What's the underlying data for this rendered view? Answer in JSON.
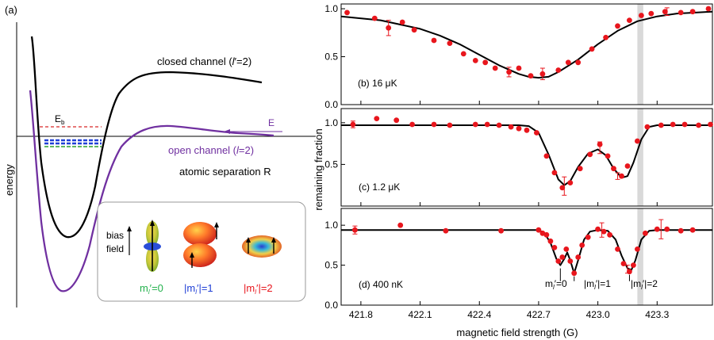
{
  "panel_a": {
    "label": "(a)",
    "ylabel": "energy",
    "closed_channel": "closed channel (",
    "closed_l": "l",
    "closed_rest": "′=2)",
    "open_channel": "open channel (",
    "open_l": "l",
    "open_rest": "=2)",
    "eb_E": "E",
    "eb_sub": "b",
    "energy_E": "E",
    "separation": "atomic separation R",
    "inset": {
      "bias": "bias",
      "field": "field",
      "m0_text": "m",
      "m0_sub": "l",
      "m0_rest": "′=0",
      "m1_text": "|m",
      "m1_sub": "l",
      "m1_rest": "′|=1",
      "m2_text": "|m",
      "m2_sub": "l",
      "m2_rest": "′|=2"
    }
  },
  "colors": {
    "closed": "#000000",
    "open": "#7030a0",
    "eb_line": "#d62728",
    "blue_state": "#1f3fd6",
    "green_state": "#2ca02c",
    "data": "#e8161d",
    "m0": "#22b14c",
    "m1": "#1f3fd6",
    "m2": "#e8161d",
    "shade": "#d9d9d9"
  },
  "right_panels": {
    "ylabel": "remaining fraction",
    "xlabel": "magnetic field strength (G)",
    "b_label": "(b) 16 μK",
    "c_label": "(c) 1.2 μK",
    "d_label": "(d) 400 nK",
    "d_m0_text": "m",
    "d_m0_sub": "l",
    "d_m0_rest": "′=0",
    "d_m1_text": "|m",
    "d_m1_sub": "l",
    "d_m1_rest": "′|=1",
    "d_m2_text": "|m",
    "d_m2_sub": "l",
    "d_m2_rest": "′|=2"
  },
  "chart_data": [
    {
      "type": "scatter",
      "title": "(b) 16 μK",
      "xlabel": "magnetic field strength (G)",
      "ylabel": "remaining fraction",
      "xlim": [
        421.7,
        423.58
      ],
      "ylim": [
        0.0,
        1.05
      ],
      "yticks": [
        0.0,
        0.5,
        1.0
      ],
      "ytick_labels": [
        "0.0",
        "0.5",
        "1.0"
      ],
      "shaded_band": [
        423.2,
        423.23
      ],
      "points": [
        [
          421.73,
          0.96
        ],
        [
          421.87,
          0.9
        ],
        [
          421.94,
          0.8
        ],
        [
          422.01,
          0.86
        ],
        [
          422.07,
          0.78
        ],
        [
          422.17,
          0.67
        ],
        [
          422.25,
          0.64
        ],
        [
          422.32,
          0.53
        ],
        [
          422.38,
          0.46
        ],
        [
          422.43,
          0.44
        ],
        [
          422.48,
          0.38
        ],
        [
          422.55,
          0.34
        ],
        [
          422.6,
          0.38
        ],
        [
          422.66,
          0.3
        ],
        [
          422.72,
          0.32
        ],
        [
          422.8,
          0.36
        ],
        [
          422.85,
          0.44
        ],
        [
          422.9,
          0.44
        ],
        [
          422.97,
          0.58
        ],
        [
          423.04,
          0.7
        ],
        [
          423.1,
          0.82
        ],
        [
          423.16,
          0.88
        ],
        [
          423.22,
          0.93
        ],
        [
          423.27,
          0.95
        ],
        [
          423.34,
          0.97
        ],
        [
          423.42,
          0.96
        ],
        [
          423.48,
          0.97
        ],
        [
          423.56,
          1.0
        ]
      ],
      "fit": [
        [
          421.7,
          0.92
        ],
        [
          421.9,
          0.88
        ],
        [
          422.1,
          0.79
        ],
        [
          422.2,
          0.72
        ],
        [
          422.3,
          0.63
        ],
        [
          422.4,
          0.52
        ],
        [
          422.5,
          0.41
        ],
        [
          422.6,
          0.32
        ],
        [
          422.65,
          0.29
        ],
        [
          422.7,
          0.28
        ],
        [
          422.75,
          0.29
        ],
        [
          422.8,
          0.34
        ],
        [
          422.9,
          0.47
        ],
        [
          423.0,
          0.63
        ],
        [
          423.1,
          0.77
        ],
        [
          423.2,
          0.87
        ],
        [
          423.3,
          0.92
        ],
        [
          423.4,
          0.95
        ],
        [
          423.58,
          0.97
        ]
      ],
      "error_bars": [
        [
          421.94,
          0.8,
          0.08
        ],
        [
          422.55,
          0.34,
          0.05
        ],
        [
          422.72,
          0.32,
          0.06
        ],
        [
          423.35,
          0.97,
          0.04
        ]
      ]
    },
    {
      "type": "scatter",
      "title": "(c) 1.2 μK",
      "xlabel": "magnetic field strength (G)",
      "ylabel": "remaining fraction",
      "xlim": [
        421.7,
        423.58
      ],
      "ylim": [
        0.0,
        1.17
      ],
      "yticks": [
        0.5,
        1.0
      ],
      "ytick_labels": [
        "0.5",
        "1.0"
      ],
      "shaded_band": [
        423.2,
        423.23
      ],
      "points": [
        [
          421.76,
          0.98
        ],
        [
          421.88,
          1.05
        ],
        [
          421.98,
          1.03
        ],
        [
          422.06,
          0.98
        ],
        [
          422.17,
          0.98
        ],
        [
          422.25,
          0.97
        ],
        [
          422.38,
          0.98
        ],
        [
          422.44,
          0.98
        ],
        [
          422.5,
          0.97
        ],
        [
          422.56,
          0.95
        ],
        [
          422.6,
          0.93
        ],
        [
          422.64,
          0.91
        ],
        [
          422.69,
          0.88
        ],
        [
          422.74,
          0.6
        ],
        [
          422.78,
          0.4
        ],
        [
          422.82,
          0.22
        ],
        [
          422.86,
          0.28
        ],
        [
          422.91,
          0.45
        ],
        [
          422.96,
          0.62
        ],
        [
          423.01,
          0.74
        ],
        [
          423.05,
          0.6
        ],
        [
          423.08,
          0.45
        ],
        [
          423.12,
          0.36
        ],
        [
          423.15,
          0.48
        ],
        [
          423.2,
          0.78
        ],
        [
          423.25,
          0.95
        ],
        [
          423.32,
          0.97
        ],
        [
          423.38,
          0.98
        ],
        [
          423.44,
          0.98
        ],
        [
          423.51,
          0.97
        ],
        [
          423.57,
          0.98
        ]
      ],
      "fit": [
        [
          421.7,
          0.97
        ],
        [
          422.6,
          0.97
        ],
        [
          422.65,
          0.96
        ],
        [
          422.7,
          0.88
        ],
        [
          422.75,
          0.62
        ],
        [
          422.8,
          0.32
        ],
        [
          422.83,
          0.25
        ],
        [
          422.86,
          0.3
        ],
        [
          422.9,
          0.47
        ],
        [
          422.95,
          0.63
        ],
        [
          423.0,
          0.68
        ],
        [
          423.04,
          0.61
        ],
        [
          423.08,
          0.45
        ],
        [
          423.12,
          0.34
        ],
        [
          423.15,
          0.36
        ],
        [
          423.18,
          0.52
        ],
        [
          423.22,
          0.8
        ],
        [
          423.26,
          0.95
        ],
        [
          423.3,
          0.97
        ],
        [
          423.58,
          0.97
        ]
      ],
      "error_bars": [
        [
          421.76,
          0.98,
          0.04
        ],
        [
          422.83,
          0.24,
          0.11
        ],
        [
          423.01,
          0.7,
          0.07
        ],
        [
          423.1,
          0.36,
          0.04
        ]
      ]
    },
    {
      "type": "scatter",
      "title": "(d) 400 nK",
      "xlabel": "magnetic field strength (G)",
      "ylabel": "remaining fraction",
      "xlim": [
        421.7,
        423.58
      ],
      "ylim": [
        0.0,
        1.21
      ],
      "yticks": [
        0.0,
        0.5,
        1.0
      ],
      "ytick_labels": [
        "0.0",
        "0.5",
        "1.0"
      ],
      "xticks": [
        421.8,
        422.1,
        422.4,
        422.7,
        423.0,
        423.3
      ],
      "xtick_labels": [
        "421.8",
        "422.1",
        "422.4",
        "422.7",
        "423.0",
        "423.3"
      ],
      "shaded_band": [
        423.2,
        423.23
      ],
      "annotations": [
        "mₗ′=0",
        "|mₗ′|=1",
        "|mₗ′|=2"
      ],
      "points": [
        [
          421.77,
          0.94
        ],
        [
          422.0,
          1.0
        ],
        [
          422.23,
          0.93
        ],
        [
          422.51,
          0.93
        ],
        [
          422.7,
          0.94
        ],
        [
          422.72,
          0.9
        ],
        [
          422.74,
          0.88
        ],
        [
          422.76,
          0.8
        ],
        [
          422.78,
          0.72
        ],
        [
          422.8,
          0.55
        ],
        [
          422.82,
          0.6
        ],
        [
          422.84,
          0.7
        ],
        [
          422.86,
          0.55
        ],
        [
          422.88,
          0.4
        ],
        [
          422.9,
          0.6
        ],
        [
          422.92,
          0.75
        ],
        [
          422.95,
          0.85
        ],
        [
          423.0,
          0.95
        ],
        [
          423.03,
          0.92
        ],
        [
          423.06,
          0.88
        ],
        [
          423.1,
          0.7
        ],
        [
          423.13,
          0.52
        ],
        [
          423.16,
          0.42
        ],
        [
          423.18,
          0.5
        ],
        [
          423.2,
          0.7
        ],
        [
          423.24,
          0.9
        ],
        [
          423.3,
          0.95
        ],
        [
          423.35,
          0.95
        ],
        [
          423.42,
          0.93
        ],
        [
          423.48,
          0.94
        ]
      ],
      "fit": [
        [
          421.7,
          0.94
        ],
        [
          422.7,
          0.94
        ],
        [
          422.73,
          0.9
        ],
        [
          422.76,
          0.78
        ],
        [
          422.79,
          0.58
        ],
        [
          422.81,
          0.5
        ],
        [
          422.83,
          0.58
        ],
        [
          422.845,
          0.66
        ],
        [
          422.86,
          0.56
        ],
        [
          422.88,
          0.4
        ],
        [
          422.9,
          0.56
        ],
        [
          422.93,
          0.82
        ],
        [
          422.96,
          0.92
        ],
        [
          423.0,
          0.94
        ],
        [
          423.05,
          0.93
        ],
        [
          423.09,
          0.82
        ],
        [
          423.12,
          0.62
        ],
        [
          423.15,
          0.46
        ],
        [
          423.17,
          0.44
        ],
        [
          423.19,
          0.56
        ],
        [
          423.22,
          0.82
        ],
        [
          423.26,
          0.93
        ],
        [
          423.3,
          0.94
        ],
        [
          423.58,
          0.94
        ]
      ],
      "error_bars": [
        [
          421.77,
          0.94,
          0.05
        ],
        [
          423.02,
          0.94,
          0.09
        ],
        [
          423.32,
          0.95,
          0.12
        ],
        [
          423.15,
          0.45,
          0.05
        ]
      ]
    }
  ]
}
